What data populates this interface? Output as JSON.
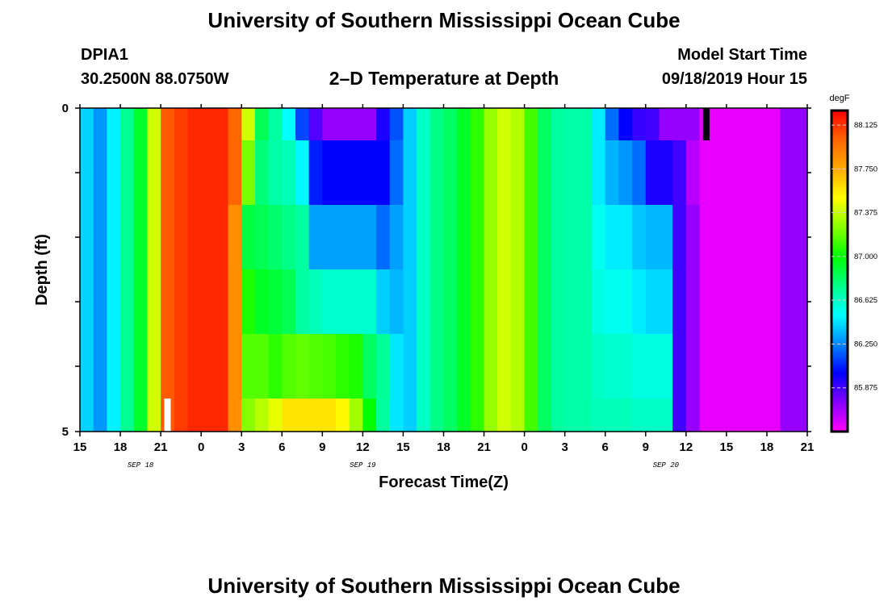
{
  "header": {
    "title": "University of Southern Mississippi Ocean Cube",
    "station_id": "DPIA1",
    "station_coords": "30.2500N 88.0750W",
    "chart_title": "2–D Temperature at Depth",
    "start_label": "Model Start Time",
    "start_value": "09/18/2019 Hour 15"
  },
  "footer": {
    "title": "University of Southern Mississippi Ocean Cube"
  },
  "chart_data": {
    "type": "heatmap",
    "title": "2–D Temperature at Depth",
    "xlabel": "Forecast Time(Z)",
    "ylabel": "Depth (ft)",
    "x_start": "09/18/2019 Hour 15",
    "x_step_hours": 1,
    "x_tick_labels": [
      "15",
      "18",
      "21",
      "0",
      "3",
      "6",
      "9",
      "12",
      "15",
      "18",
      "21",
      "0",
      "3",
      "6",
      "9",
      "12",
      "15",
      "18",
      "21"
    ],
    "date_labels": [
      {
        "label": "SEP 18",
        "at_hour_index": 4.5
      },
      {
        "label": "SEP 19",
        "at_hour_index": 21
      },
      {
        "label": "SEP 20",
        "at_hour_index": 43.5
      }
    ],
    "ylim": [
      0,
      5
    ],
    "y_tick_labels": [
      "0",
      "5"
    ],
    "depth_levels_ft": [
      "0-0.5",
      "0.5-1.5",
      "1.5-2.5",
      "2.5-3.5",
      "3.5-4.5",
      "4.5-5"
    ],
    "colorbar": {
      "units": "degF",
      "min": 85.5,
      "max": 88.25,
      "tick_labels": [
        "88.125",
        "87.750",
        "87.375",
        "87.000",
        "86.625",
        "86.250",
        "85.875"
      ],
      "tick_values": [
        88.125,
        87.75,
        87.375,
        87.0,
        86.625,
        86.25,
        85.875
      ],
      "colors": [
        "#ff00ff",
        "#8800ff",
        "#0000ff",
        "#0088ff",
        "#00ffff",
        "#00ff88",
        "#00ff00",
        "#88ff00",
        "#ffff00",
        "#ffaa00",
        "#ff6600",
        "#ff0000"
      ]
    },
    "markers": [
      {
        "hour_index": 6.5,
        "depth_level": 5,
        "color": "#ffffff"
      },
      {
        "hour_index": 46.5,
        "depth_level": 0,
        "color": "#000000"
      }
    ],
    "temperature_degF": [
      [
        86.41,
        86.28,
        86.47,
        86.73,
        86.92,
        87.4,
        88.03,
        88.1,
        88.15,
        88.15,
        88.15,
        88.0,
        87.4,
        86.85,
        86.7,
        86.5,
        86.13,
        85.85,
        85.72,
        85.72,
        85.72,
        85.72,
        85.95,
        86.15,
        86.4,
        86.62,
        86.75,
        86.82,
        86.93,
        87.08,
        87.28,
        87.4,
        87.34,
        87.12,
        86.82,
        86.7,
        86.68,
        86.68,
        86.46,
        86.2,
        86.0,
        85.9,
        85.88,
        85.72,
        85.72,
        85.72,
        85.55,
        85.55,
        85.55,
        85.55,
        85.55,
        85.55,
        85.72,
        85.72
      ],
      [
        86.41,
        86.28,
        86.47,
        86.73,
        86.92,
        87.4,
        88.03,
        88.1,
        88.15,
        88.15,
        88.15,
        88.0,
        87.22,
        86.78,
        86.68,
        86.65,
        86.49,
        86.05,
        86.0,
        86.0,
        86.0,
        86.0,
        86.0,
        86.2,
        86.4,
        86.62,
        86.75,
        86.82,
        86.93,
        87.08,
        87.28,
        87.4,
        87.34,
        87.12,
        86.82,
        86.7,
        86.68,
        86.68,
        86.46,
        86.34,
        86.28,
        86.2,
        85.95,
        85.95,
        85.88,
        85.65,
        85.55,
        85.55,
        85.55,
        85.55,
        85.55,
        85.55,
        85.72,
        85.72
      ],
      [
        86.41,
        86.28,
        86.47,
        86.73,
        86.92,
        87.4,
        88.03,
        88.1,
        88.15,
        88.15,
        88.15,
        87.85,
        86.88,
        86.85,
        86.8,
        86.75,
        86.7,
        86.3,
        86.3,
        86.3,
        86.3,
        86.3,
        86.2,
        86.3,
        86.4,
        86.62,
        86.75,
        86.82,
        86.93,
        87.08,
        87.28,
        87.4,
        87.34,
        87.12,
        86.82,
        86.7,
        86.68,
        86.68,
        86.53,
        86.46,
        86.46,
        86.38,
        86.35,
        86.35,
        85.88,
        85.72,
        85.55,
        85.55,
        85.55,
        85.55,
        85.55,
        85.55,
        85.72,
        85.72
      ],
      [
        86.41,
        86.28,
        86.47,
        86.73,
        86.92,
        87.4,
        88.03,
        88.1,
        88.15,
        88.15,
        88.15,
        87.85,
        87.05,
        86.93,
        86.9,
        86.85,
        86.7,
        86.65,
        86.6,
        86.6,
        86.6,
        86.6,
        86.4,
        86.35,
        86.4,
        86.62,
        86.75,
        86.82,
        86.93,
        87.08,
        87.28,
        87.4,
        87.34,
        87.12,
        86.82,
        86.7,
        86.68,
        86.68,
        86.56,
        86.53,
        86.53,
        86.46,
        86.42,
        86.42,
        85.88,
        85.72,
        85.55,
        85.55,
        85.55,
        85.55,
        85.55,
        85.55,
        85.72,
        85.72
      ],
      [
        86.41,
        86.28,
        86.47,
        86.73,
        86.92,
        87.4,
        88.03,
        88.1,
        88.15,
        88.15,
        88.15,
        87.85,
        87.15,
        87.15,
        87.08,
        87.15,
        87.18,
        87.15,
        87.13,
        87.08,
        87.05,
        86.82,
        86.72,
        86.45,
        86.4,
        86.62,
        86.75,
        86.82,
        86.93,
        87.08,
        87.28,
        87.4,
        87.34,
        87.12,
        86.82,
        86.7,
        86.68,
        86.68,
        86.62,
        86.6,
        86.6,
        86.56,
        86.56,
        86.56,
        85.88,
        85.72,
        85.55,
        85.55,
        85.55,
        85.55,
        85.55,
        85.55,
        85.72,
        85.72
      ],
      [
        86.41,
        86.28,
        86.47,
        86.73,
        86.92,
        87.4,
        88.03,
        88.1,
        88.15,
        88.15,
        88.15,
        87.85,
        87.25,
        87.35,
        87.45,
        87.58,
        87.58,
        87.58,
        87.58,
        87.52,
        87.3,
        87.0,
        86.7,
        86.45,
        86.4,
        86.62,
        86.75,
        86.82,
        86.93,
        87.08,
        87.28,
        87.4,
        87.34,
        87.12,
        86.82,
        86.7,
        86.68,
        86.68,
        86.65,
        86.65,
        86.65,
        86.62,
        86.62,
        86.62,
        85.88,
        85.72,
        85.55,
        85.55,
        85.55,
        85.55,
        85.55,
        85.55,
        85.72,
        85.72
      ]
    ]
  }
}
